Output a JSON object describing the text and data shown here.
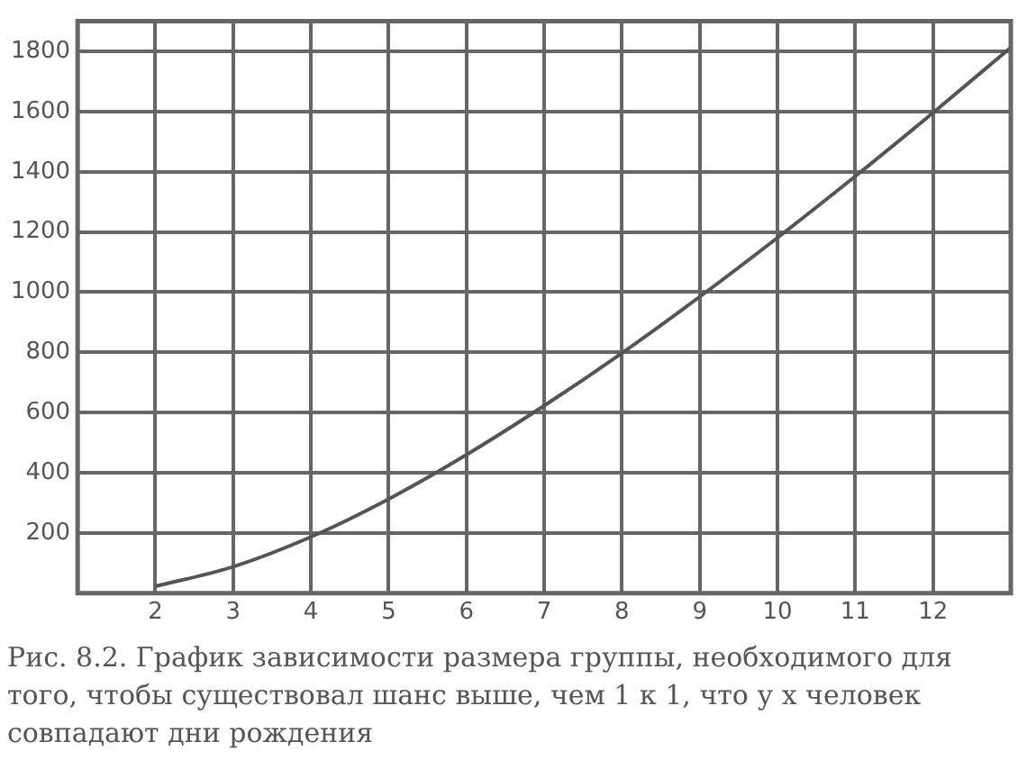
{
  "chart_data": {
    "type": "line",
    "x": [
      2,
      3,
      4,
      5,
      6,
      7,
      8,
      9,
      10,
      11,
      12,
      13
    ],
    "series": [
      {
        "color": "#555555",
        "values": [
          23,
          88,
          187,
          313,
          460,
          623,
          798,
          985,
          1181,
          1385,
          1596,
          1813
        ]
      }
    ],
    "xlim": [
      1,
      13
    ],
    "ylim": [
      0,
      1900
    ],
    "xticks": [
      2,
      3,
      4,
      5,
      6,
      7,
      8,
      9,
      10,
      11,
      12
    ],
    "yticks": [
      200,
      400,
      600,
      800,
      1000,
      1200,
      1400,
      1600,
      1800
    ],
    "grid": true,
    "marker": "none",
    "line_style": "solid",
    "annotations": [
      "Рис. 8.2. График зависимости размера группы, необходимого для того, чтобы существовал шанс выше, чем 1 к 1, что у x человек совпадают дни рождения"
    ]
  }
}
